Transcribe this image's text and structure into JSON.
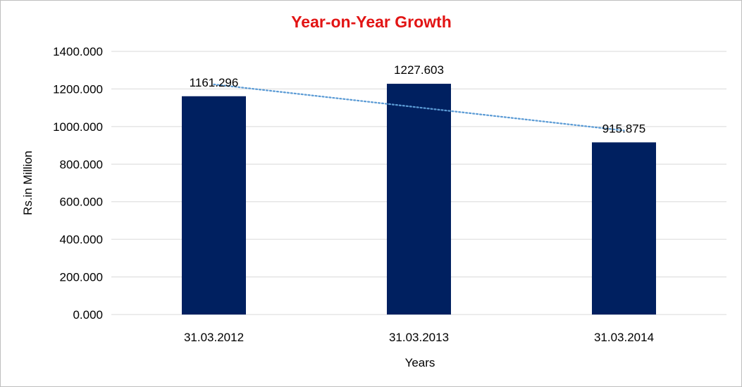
{
  "colors": {
    "title": "#e21414",
    "bar": "#002060",
    "trendline": "#5b9bd5",
    "gridline": "#d9d9d9",
    "text": "#000000"
  },
  "chart_data": {
    "type": "bar",
    "title": "Year-on-Year Growth",
    "xlabel": "Years",
    "ylabel": "Rs.in Million",
    "categories": [
      "31.03.2012",
      "31.03.2013",
      "31.03.2014"
    ],
    "values": [
      1161.296,
      1227.603,
      915.875
    ],
    "data_labels": [
      "1161.296",
      "1227.603",
      "915.875"
    ],
    "ylim": [
      0,
      1400
    ],
    "yticks": [
      0,
      200,
      400,
      600,
      800,
      1000,
      1200,
      1400
    ],
    "ytick_labels": [
      "0.000",
      "200.000",
      "400.000",
      "600.000",
      "800.000",
      "1000.000",
      "1200.000",
      "1400.000"
    ],
    "grid": true,
    "trendline": {
      "type": "linear",
      "style": "dotted"
    },
    "legend": "none"
  }
}
